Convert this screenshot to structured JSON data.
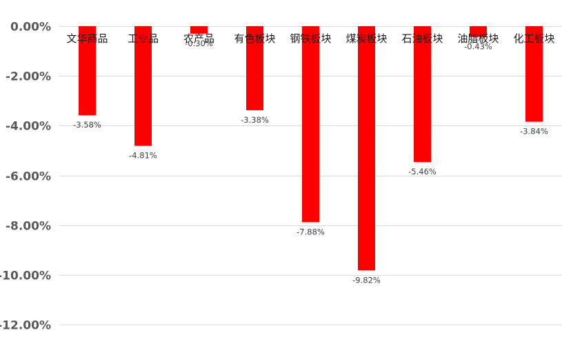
{
  "chart_data": {
    "type": "bar",
    "title": "",
    "xlabel": "",
    "ylabel": "",
    "categories": [
      "文华商品",
      "工业品",
      "农产品",
      "有色板块",
      "钢铁板块",
      "煤炭板块",
      "石油板块",
      "油脂板块",
      "化工板块"
    ],
    "values": [
      -3.58,
      -4.81,
      -0.3,
      -3.38,
      -7.88,
      -9.82,
      -5.46,
      -0.43,
      -3.84
    ],
    "data_labels": [
      "-3.58%",
      "-4.81%",
      "-0.30%",
      "-3.38%",
      "-7.88%",
      "-9.82%",
      "-5.46%",
      "-0.43%",
      "-3.84%"
    ],
    "y_ticks": [
      0,
      -2,
      -4,
      -6,
      -8,
      -10,
      -12
    ],
    "y_tick_labels": [
      "0.00%",
      "-2.00%",
      "-4.00%",
      "-6.00%",
      "-8.00%",
      "-10.00%",
      "-12.00%"
    ],
    "ylim": [
      -12,
      0
    ],
    "grid": true,
    "legend": "none",
    "bar_color": "#ff0000"
  }
}
